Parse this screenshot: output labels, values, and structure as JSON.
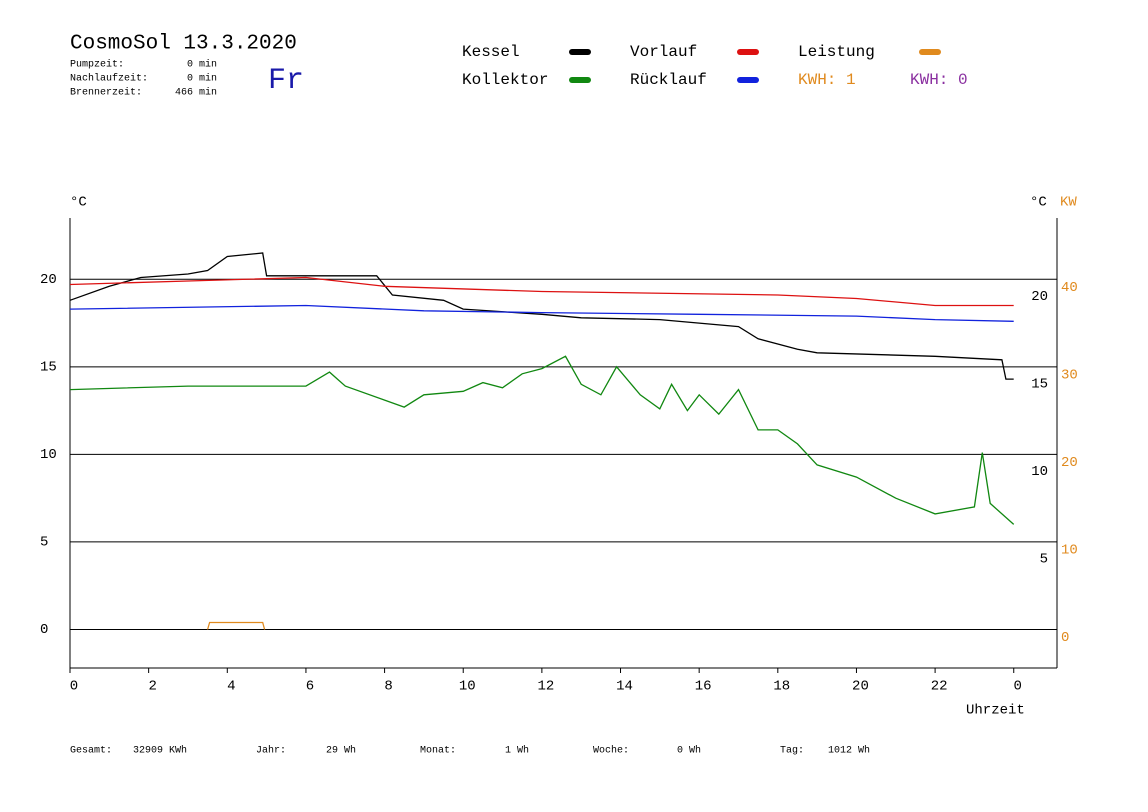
{
  "chart_data": {
    "type": "line",
    "title": "CosmoSol 13.3.2020",
    "day": "Fr",
    "stats": [
      {
        "label": "Pumpzeit:",
        "value": "0 min"
      },
      {
        "label": "Nachlaufzeit:",
        "value": "0 min"
      },
      {
        "label": "Brennerzeit:",
        "value": "466 min"
      }
    ],
    "kwh": [
      {
        "text": "KWH: 1",
        "color": "#e08a1e"
      },
      {
        "text": "KWH: 0",
        "color": "#8a2fa0"
      }
    ],
    "x_label": "Uhrzeit",
    "y_label": "°C",
    "y_right_label": "°C",
    "y2_label": "KW",
    "xlim": [
      0,
      25.1
    ],
    "xticks": [
      0,
      2,
      4,
      6,
      8,
      10,
      12,
      14,
      16,
      18,
      20,
      22,
      {
        "value": 24,
        "label": "0"
      }
    ],
    "ylim": [
      -2.2,
      23.5
    ],
    "yticks": [
      0,
      5,
      10,
      15,
      20
    ],
    "y_right_ticks": [
      5,
      10,
      15,
      20
    ],
    "y2lim": [
      -4.4,
      47
    ],
    "y2ticks": [
      0,
      10,
      20,
      30,
      40
    ],
    "grid": true,
    "series": [
      {
        "name": "Kessel",
        "color": "#000000",
        "x": [
          0,
          1,
          1.8,
          3,
          3.5,
          4,
          4.9,
          5,
          6,
          7.8,
          8.2,
          9.5,
          10,
          12,
          13,
          15,
          17,
          17.5,
          18.5,
          19,
          22,
          23.7,
          23.8,
          24
        ],
        "values": [
          18.8,
          19.6,
          20.1,
          20.3,
          20.5,
          21.3,
          21.5,
          20.2,
          20.2,
          20.2,
          19.1,
          18.8,
          18.3,
          18,
          17.8,
          17.7,
          17.3,
          16.6,
          16,
          15.8,
          15.6,
          15.4,
          14.3,
          14.3
        ]
      },
      {
        "name": "Kollektor",
        "color": "#118811",
        "x": [
          0,
          3,
          6,
          6.6,
          7,
          8,
          8.5,
          9,
          10,
          10.5,
          11,
          11.5,
          12,
          12.6,
          13,
          13.5,
          13.9,
          14.5,
          15,
          15.3,
          15.7,
          16,
          16.5,
          17,
          17.5,
          18,
          18.5,
          19,
          20,
          21,
          22,
          23,
          23.2,
          23.4,
          24
        ],
        "values": [
          13.7,
          13.9,
          13.9,
          14.7,
          13.9,
          13.1,
          12.7,
          13.4,
          13.6,
          14.1,
          13.8,
          14.6,
          14.9,
          15.6,
          14,
          13.4,
          15,
          13.4,
          12.6,
          14,
          12.5,
          13.4,
          12.3,
          13.7,
          11.4,
          11.4,
          10.6,
          9.4,
          8.7,
          7.5,
          6.6,
          7.0,
          10.1,
          7.2,
          6.0
        ]
      },
      {
        "name": "Vorlauf",
        "color": "#dd1111",
        "x": [
          0,
          3,
          6,
          8,
          12,
          18,
          20,
          22,
          24
        ],
        "values": [
          19.7,
          19.9,
          20.1,
          19.6,
          19.3,
          19.1,
          18.9,
          18.5,
          18.5
        ]
      },
      {
        "name": "Rücklauf",
        "color": "#1122dd",
        "x": [
          0,
          6,
          9,
          12,
          16,
          20,
          22,
          24
        ],
        "values": [
          18.3,
          18.5,
          18.2,
          18.1,
          18.0,
          17.9,
          17.7,
          17.6
        ]
      },
      {
        "name": "Leistung",
        "color": "#e08a1e",
        "axis": "y2",
        "x": [
          3.5,
          3.55,
          4.9,
          4.95
        ],
        "values": [
          0,
          0.8,
          0.8,
          0
        ]
      }
    ],
    "footer": [
      {
        "label": "Gesamt:",
        "value": "32909 KWh"
      },
      {
        "label": "Jahr:",
        "value": "29 Wh"
      },
      {
        "label": "Monat:",
        "value": "1 Wh"
      },
      {
        "label": "Woche:",
        "value": "0 Wh"
      },
      {
        "label": "Tag:",
        "value": "1012 Wh"
      }
    ]
  }
}
